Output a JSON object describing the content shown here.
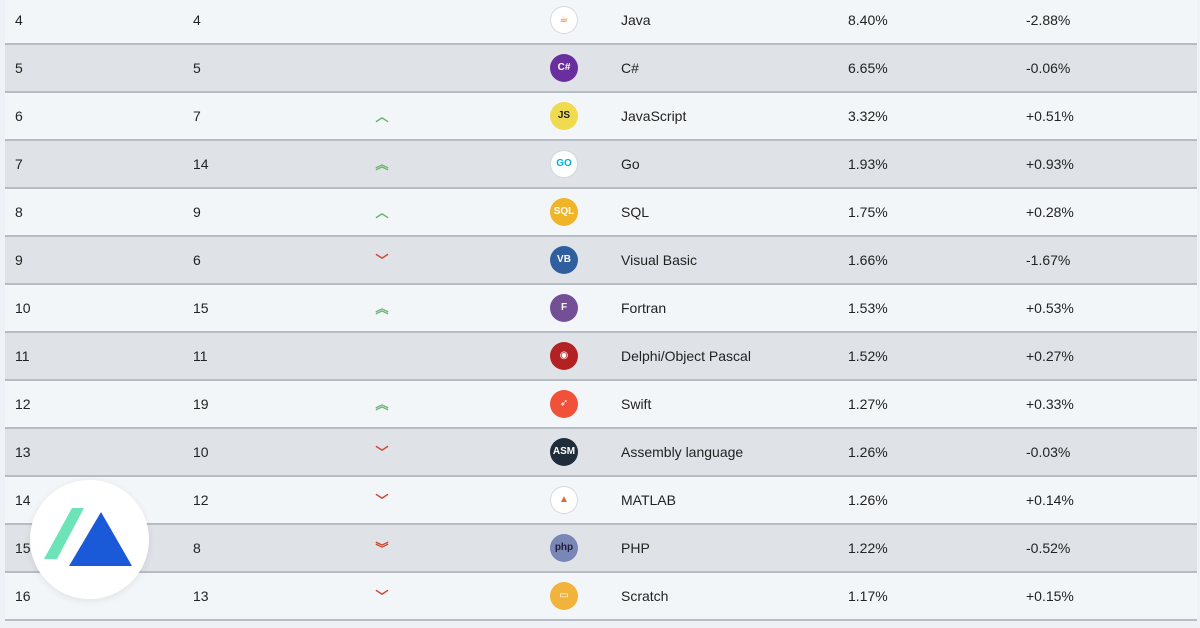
{
  "rows": [
    {
      "rank": "4",
      "prev": "4",
      "change": "",
      "logo": "java-logo-icon",
      "logo_text": "☕",
      "logo_bg": "#ffffff",
      "logo_fg": "#e76f00",
      "lang": "Java",
      "rating": "8.40%",
      "delta": "-2.88%"
    },
    {
      "rank": "5",
      "prev": "5",
      "change": "",
      "logo": "csharp-logo-icon",
      "logo_text": "C#",
      "logo_bg": "#6a2f9e",
      "logo_fg": "#ffffff",
      "lang": "C#",
      "rating": "6.65%",
      "delta": "-0.06%"
    },
    {
      "rank": "6",
      "prev": "7",
      "change": "up",
      "logo": "javascript-logo-icon",
      "logo_text": "JS",
      "logo_bg": "#f0db4f",
      "logo_fg": "#222222",
      "lang": "JavaScript",
      "rating": "3.32%",
      "delta": "+0.51%"
    },
    {
      "rank": "7",
      "prev": "14",
      "change": "up2",
      "logo": "go-logo-icon",
      "logo_text": "GO",
      "logo_bg": "#ffffff",
      "logo_fg": "#00add8",
      "lang": "Go",
      "rating": "1.93%",
      "delta": "+0.93%"
    },
    {
      "rank": "8",
      "prev": "9",
      "change": "up",
      "logo": "sql-logo-icon",
      "logo_text": "SQL",
      "logo_bg": "#f0b429",
      "logo_fg": "#ffffff",
      "lang": "SQL",
      "rating": "1.75%",
      "delta": "+0.28%"
    },
    {
      "rank": "9",
      "prev": "6",
      "change": "down",
      "logo": "visual-basic-logo-icon",
      "logo_text": "VB",
      "logo_bg": "#2f5f9e",
      "logo_fg": "#ffffff",
      "lang": "Visual Basic",
      "rating": "1.66%",
      "delta": "-1.67%"
    },
    {
      "rank": "10",
      "prev": "15",
      "change": "up2",
      "logo": "fortran-logo-icon",
      "logo_text": "F",
      "logo_bg": "#734f96",
      "logo_fg": "#ffffff",
      "lang": "Fortran",
      "rating": "1.53%",
      "delta": "+0.53%"
    },
    {
      "rank": "11",
      "prev": "11",
      "change": "",
      "logo": "delphi-logo-icon",
      "logo_text": "◉",
      "logo_bg": "#b22222",
      "logo_fg": "#ffffff",
      "lang": "Delphi/Object Pascal",
      "rating": "1.52%",
      "delta": "+0.27%"
    },
    {
      "rank": "12",
      "prev": "19",
      "change": "up2",
      "logo": "swift-logo-icon",
      "logo_text": "➶",
      "logo_bg": "#f05138",
      "logo_fg": "#ffffff",
      "lang": "Swift",
      "rating": "1.27%",
      "delta": "+0.33%"
    },
    {
      "rank": "13",
      "prev": "10",
      "change": "down",
      "logo": "assembly-logo-icon",
      "logo_text": "ASM",
      "logo_bg": "#1f2d3a",
      "logo_fg": "#ffffff",
      "lang": "Assembly language",
      "rating": "1.26%",
      "delta": "-0.03%"
    },
    {
      "rank": "14",
      "prev": "12",
      "change": "down",
      "logo": "matlab-logo-icon",
      "logo_text": "▲",
      "logo_bg": "#ffffff",
      "logo_fg": "#e16737",
      "lang": "MATLAB",
      "rating": "1.26%",
      "delta": "+0.14%"
    },
    {
      "rank": "15",
      "prev": "8",
      "change": "down2",
      "logo": "php-logo-icon",
      "logo_text": "php",
      "logo_bg": "#7a86b8",
      "logo_fg": "#1f1f2e",
      "lang": "PHP",
      "rating": "1.22%",
      "delta": "-0.52%"
    },
    {
      "rank": "16",
      "prev": "13",
      "change": "down",
      "logo": "scratch-logo-icon",
      "logo_text": "▭",
      "logo_bg": "#f2b33d",
      "logo_fg": "#ffffff",
      "lang": "Scratch",
      "rating": "1.17%",
      "delta": "+0.15%"
    }
  ],
  "brand_badge": {
    "icon": "triangle-logo-icon",
    "colors": [
      "#6de3b8",
      "#1a5ad8"
    ]
  }
}
